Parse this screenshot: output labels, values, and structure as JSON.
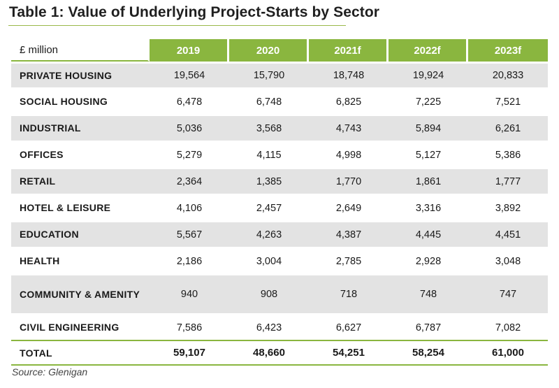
{
  "title": "Table 1: Value of Underlying Project-Starts by Sector",
  "table": {
    "unit_label": "£ million",
    "columns": [
      "2019",
      "2020",
      "2021f",
      "2022f",
      "2023f"
    ],
    "rows": [
      {
        "label": "PRIVATE HOUSING",
        "values": [
          "19,564",
          "15,790",
          "18,748",
          "19,924",
          "20,833"
        ]
      },
      {
        "label": "SOCIAL HOUSING",
        "values": [
          "6,478",
          "6,748",
          "6,825",
          "7,225",
          "7,521"
        ]
      },
      {
        "label": "INDUSTRIAL",
        "values": [
          "5,036",
          "3,568",
          "4,743",
          "5,894",
          "6,261"
        ]
      },
      {
        "label": "OFFICES",
        "values": [
          "5,279",
          "4,115",
          "4,998",
          "5,127",
          "5,386"
        ]
      },
      {
        "label": "RETAIL",
        "values": [
          "2,364",
          "1,385",
          "1,770",
          "1,861",
          "1,777"
        ]
      },
      {
        "label": "HOTEL & LEISURE",
        "values": [
          "4,106",
          "2,457",
          "2,649",
          "3,316",
          "3,892"
        ]
      },
      {
        "label": "EDUCATION",
        "values": [
          "5,567",
          "4,263",
          "4,387",
          "4,445",
          "4,451"
        ]
      },
      {
        "label": "HEALTH",
        "values": [
          "2,186",
          "3,004",
          "2,785",
          "2,928",
          "3,048"
        ]
      },
      {
        "label": "COMMUNITY & AMENITY",
        "values": [
          "940",
          "908",
          "718",
          "748",
          "747"
        ]
      },
      {
        "label": "CIVIL ENGINEERING",
        "values": [
          "7,586",
          "6,423",
          "6,627",
          "6,787",
          "7,082"
        ]
      }
    ],
    "total": {
      "label": "TOTAL",
      "values": [
        "59,107",
        "48,660",
        "54,251",
        "58,254",
        "61,000"
      ]
    }
  },
  "source": "Source: Glenigan",
  "colors": {
    "header_green": "#8ab63f",
    "row_shade": "#e3e3e3",
    "rule_green": "#9ab84a"
  }
}
